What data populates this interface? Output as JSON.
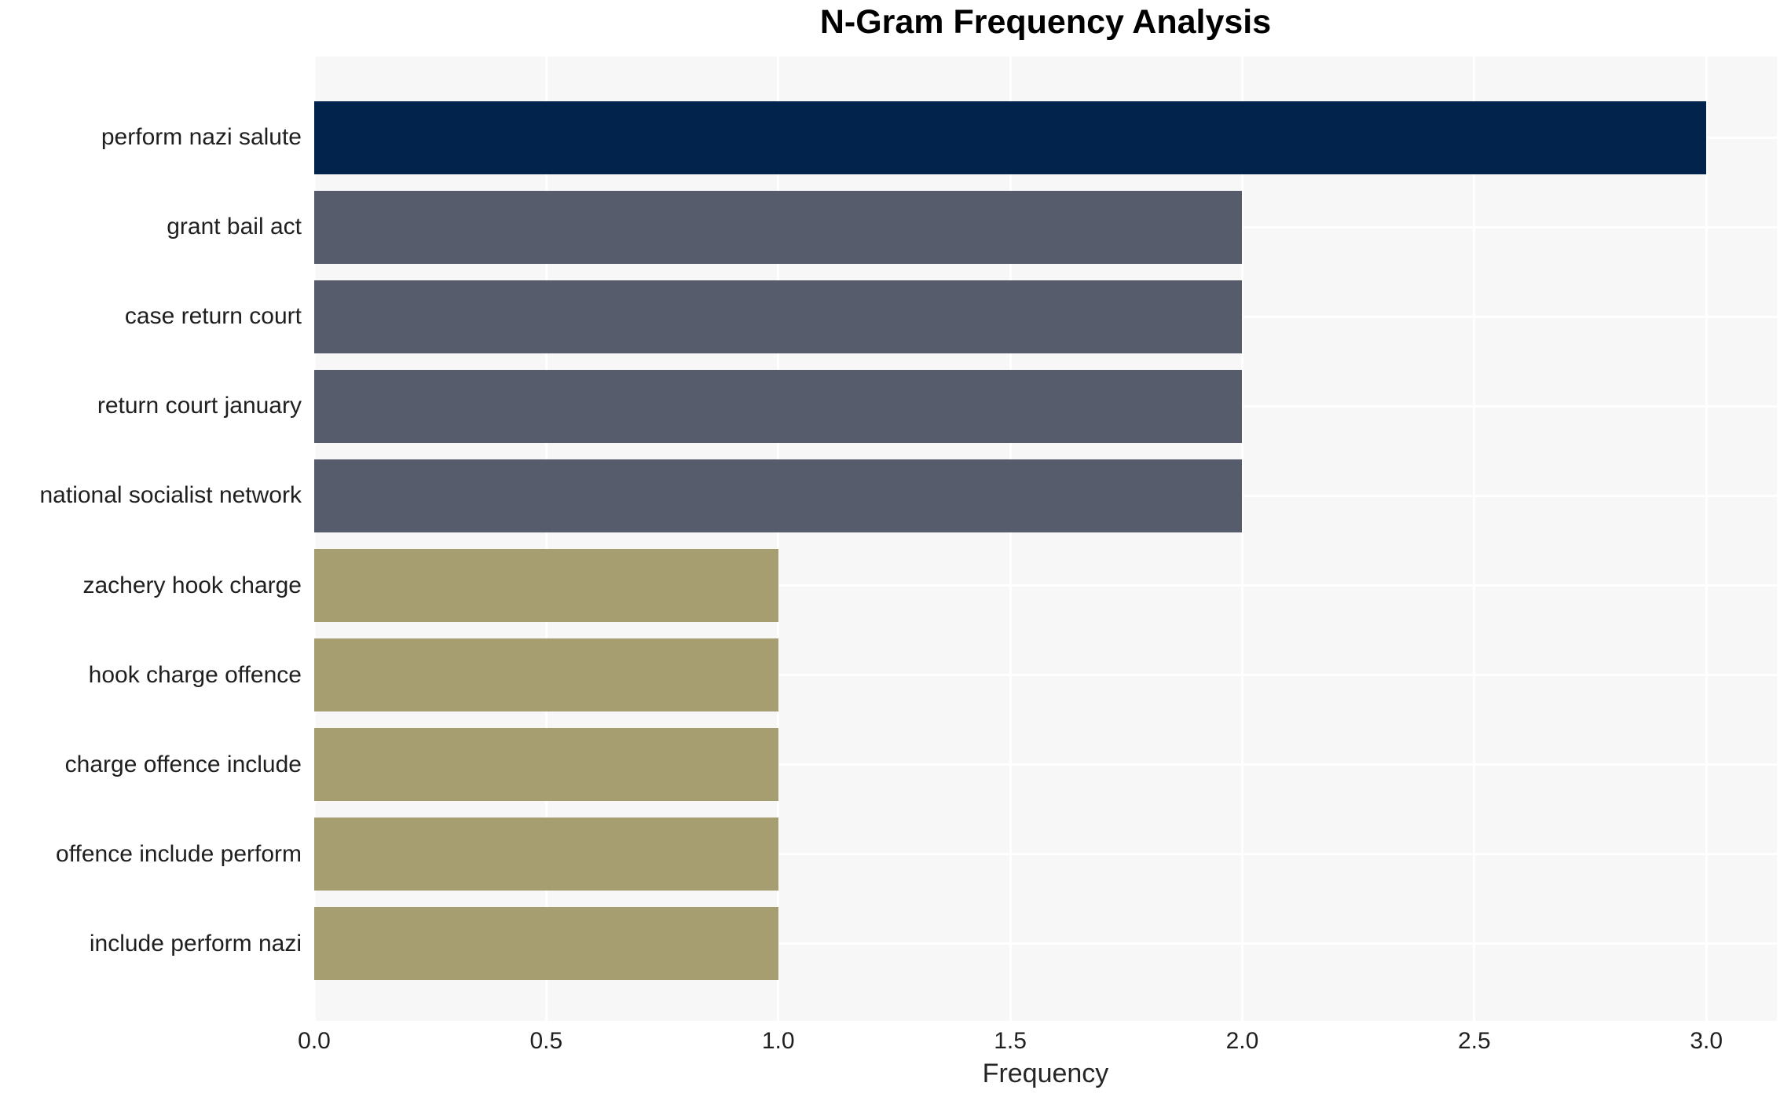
{
  "chart_data": {
    "type": "bar",
    "orientation": "horizontal",
    "title": "N-Gram Frequency Analysis",
    "xlabel": "Frequency",
    "ylabel": "",
    "categories": [
      "perform nazi salute",
      "grant bail act",
      "case return court",
      "return court january",
      "national socialist network",
      "zachery hook charge",
      "hook charge offence",
      "charge offence include",
      "offence include perform",
      "include perform nazi"
    ],
    "values": [
      3,
      2,
      2,
      2,
      2,
      1,
      1,
      1,
      1,
      1
    ],
    "bar_colors": [
      "#02234C",
      "#565C6B",
      "#565C6B",
      "#565C6B",
      "#565C6B",
      "#A69D71",
      "#A69D71",
      "#A69D71",
      "#A69D71",
      "#A69D71"
    ],
    "xticks": [
      0.0,
      0.5,
      1.0,
      1.5,
      2.0,
      2.5,
      3.0
    ],
    "xtick_labels": [
      "0.0",
      "0.5",
      "1.0",
      "1.5",
      "2.0",
      "2.5",
      "3.0"
    ],
    "xlim": [
      0,
      3.152
    ],
    "grid": "both",
    "legend": "none",
    "panel_background": "#F7F7F8",
    "grid_color": "#FFFFFF",
    "figure_background": "#FFFFFF",
    "tick_text_color": "#1F1F1F",
    "title_color": "#000000"
  }
}
